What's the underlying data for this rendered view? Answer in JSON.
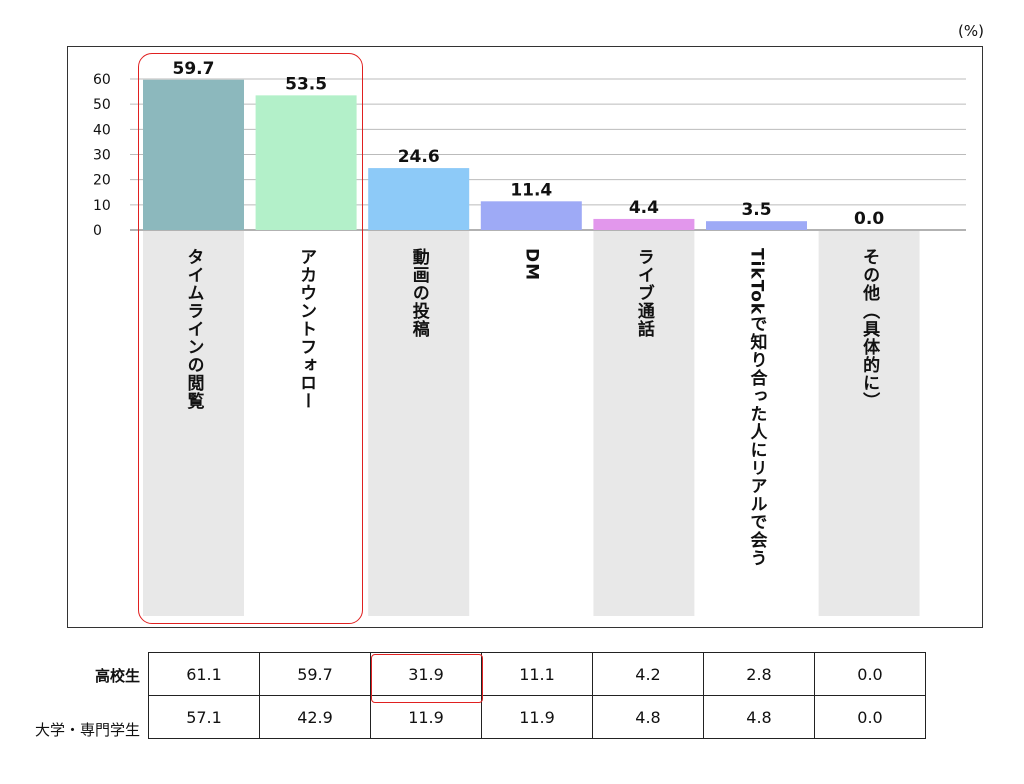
{
  "chart_data": {
    "type": "bar",
    "unit": "(%)",
    "categories": [
      "タイムラインの閲覧",
      "アカウントフォロー",
      "動画の投稿",
      "DM",
      "ライブ通話",
      "TikTokで知り合った人にリアルで会う",
      "その他（具体的に）"
    ],
    "values": [
      59.7,
      53.5,
      24.6,
      11.4,
      4.4,
      3.5,
      0.0
    ],
    "value_labels": [
      "59.7",
      "53.5",
      "24.6",
      "11.4",
      "4.4",
      "3.5",
      "0.0"
    ],
    "ylim": [
      0,
      60
    ],
    "yticks": [
      "0",
      "10",
      "20",
      "30",
      "40",
      "50",
      "60"
    ],
    "grid": true,
    "colors": [
      "#8cb8bd",
      "#b3f0c9",
      "#8dcaf8",
      "#9eaaf6",
      "#e297ec",
      "#9eaaf6",
      "#cccccc"
    ],
    "label_background": "#e8e8e8",
    "highlight_color": "#e02020"
  },
  "table": {
    "rows": [
      {
        "label": "高校生",
        "values": [
          "61.1",
          "59.7",
          "31.9",
          "11.1",
          "4.2",
          "2.8",
          "0.0"
        ]
      },
      {
        "label": "大学・専門学生",
        "values": [
          "57.1",
          "42.9",
          "11.9",
          "11.9",
          "4.8",
          "4.8",
          "0.0"
        ]
      }
    ]
  }
}
